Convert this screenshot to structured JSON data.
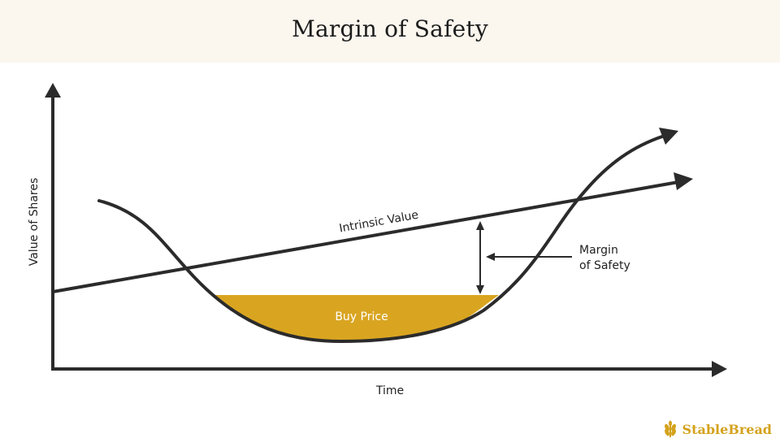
{
  "title": "Margin of Safety",
  "diagram": {
    "y_axis_label": "Value of Shares",
    "x_axis_label": "Time",
    "intrinsic_value_label": "Intrinsic Value",
    "buy_price_label": "Buy Price",
    "margin_label_line1": "Margin",
    "margin_label_line2": "of Safety"
  },
  "brand": {
    "name": "StableBread",
    "color": "#d4a21d",
    "icon": "wheat-icon"
  },
  "colors": {
    "header_bg": "#fbf6ee",
    "line": "#2b2b2b",
    "fill": "#d9a521"
  }
}
